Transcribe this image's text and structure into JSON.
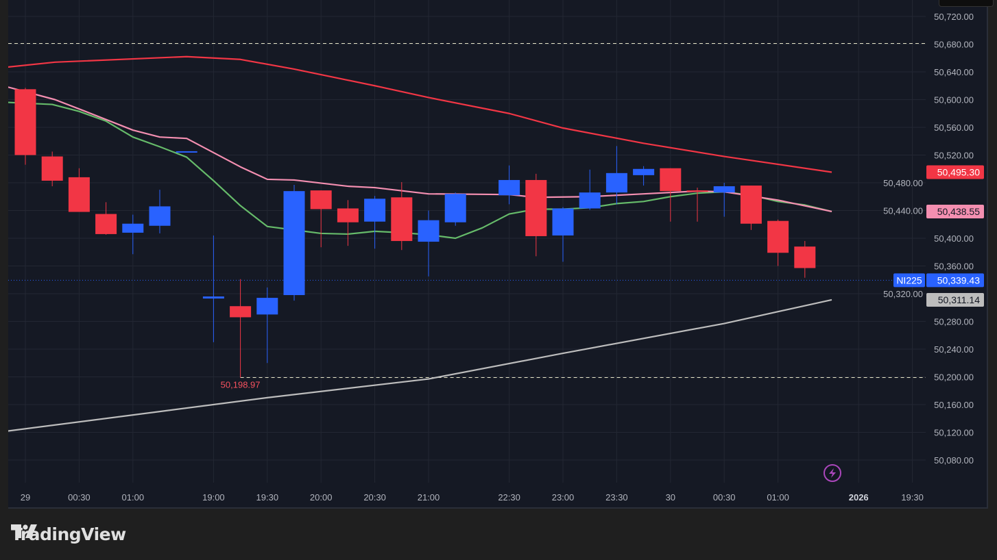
{
  "brand": "TradingView",
  "symbol": "NI225",
  "colors": {
    "up": "#2962ff",
    "down": "#f23645",
    "ma_slow": "#f23645",
    "ma_pink": "#f48fb1",
    "ma_green": "#66bb6a",
    "ma_gray": "#bdbdbd",
    "last": "#2962ff"
  },
  "chart_data": {
    "type": "candlestick",
    "ylim": [
      50050,
      50740
    ],
    "y_ticks": [
      "50,720.00",
      "50,680.00",
      "50,640.00",
      "50,600.00",
      "50,560.00",
      "50,520.00",
      "50,480.00",
      "50,440.00",
      "50,400.00",
      "50,360.00",
      "50,320.00",
      "50,280.00",
      "50,240.00",
      "50,200.00",
      "50,160.00",
      "50,120.00",
      "50,080.00"
    ],
    "y_tick_values": [
      50720,
      50680,
      50640,
      50600,
      50560,
      50520,
      50480,
      50440,
      50400,
      50360,
      50320,
      50280,
      50240,
      50200,
      50160,
      50120,
      50080
    ],
    "x_ticks": [
      {
        "slot": 0,
        "label": "29"
      },
      {
        "slot": 2,
        "label": "00:30"
      },
      {
        "slot": 4,
        "label": "01:00"
      },
      {
        "slot": 7,
        "label": "19:00"
      },
      {
        "slot": 9,
        "label": "19:30"
      },
      {
        "slot": 11,
        "label": "20:00"
      },
      {
        "slot": 13,
        "label": "20:30"
      },
      {
        "slot": 15,
        "label": "21:00"
      },
      {
        "slot": 18,
        "label": "22:30"
      },
      {
        "slot": 20,
        "label": "23:00"
      },
      {
        "slot": 22,
        "label": "23:30"
      },
      {
        "slot": 24,
        "label": "30"
      },
      {
        "slot": 26,
        "label": "00:30"
      },
      {
        "slot": 28,
        "label": "01:00"
      },
      {
        "slot": 31,
        "label": "2026",
        "bold": true
      },
      {
        "slot": 33,
        "label": "19:30"
      }
    ],
    "candles": [
      {
        "slot": 0,
        "o": 50615,
        "h": 50617,
        "l": 50506,
        "c": 50520
      },
      {
        "slot": 1,
        "o": 50518,
        "h": 50525,
        "l": 50475,
        "c": 50483
      },
      {
        "slot": 2,
        "o": 50488,
        "h": 50501,
        "l": 50438,
        "c": 50438
      },
      {
        "slot": 3,
        "o": 50435,
        "h": 50452,
        "l": 50405,
        "c": 50406
      },
      {
        "slot": 4,
        "o": 50408,
        "h": 50434,
        "l": 50377,
        "c": 50421
      },
      {
        "slot": 5,
        "o": 50418,
        "h": 50470,
        "l": 50407,
        "c": 50446
      },
      {
        "slot": 6,
        "o": 50525,
        "h": 50525,
        "l": 50525,
        "c": 50525.5
      },
      {
        "slot": 7,
        "o": 50313,
        "h": 50404,
        "l": 50250,
        "c": 50316
      },
      {
        "slot": 8,
        "o": 50302,
        "h": 50341,
        "l": 50198.97,
        "c": 50286
      },
      {
        "slot": 9,
        "o": 50290,
        "h": 50329,
        "l": 50220,
        "c": 50314
      },
      {
        "slot": 10,
        "o": 50318,
        "h": 50477,
        "l": 50310,
        "c": 50468
      },
      {
        "slot": 11,
        "o": 50469,
        "h": 50469,
        "l": 50387,
        "c": 50442
      },
      {
        "slot": 12,
        "o": 50443,
        "h": 50455,
        "l": 50389,
        "c": 50423
      },
      {
        "slot": 13,
        "o": 50424,
        "h": 50461,
        "l": 50385,
        "c": 50457
      },
      {
        "slot": 14,
        "o": 50459,
        "h": 50481,
        "l": 50383,
        "c": 50396
      },
      {
        "slot": 15,
        "o": 50395,
        "h": 50440,
        "l": 50345,
        "c": 50426
      },
      {
        "slot": 16,
        "o": 50423,
        "h": 50466,
        "l": 50418,
        "c": 50464
      },
      {
        "slot": 18,
        "o": 50462,
        "h": 50505,
        "l": 50449,
        "c": 50484
      },
      {
        "slot": 19,
        "o": 50484,
        "h": 50493,
        "l": 50374,
        "c": 50403
      },
      {
        "slot": 20,
        "o": 50404,
        "h": 50445,
        "l": 50366,
        "c": 50443
      },
      {
        "slot": 21,
        "o": 50443,
        "h": 50499,
        "l": 50441,
        "c": 50466
      },
      {
        "slot": 22,
        "o": 50466,
        "h": 50533,
        "l": 50449,
        "c": 50494
      },
      {
        "slot": 23,
        "o": 50491,
        "h": 50504,
        "l": 50476,
        "c": 50500
      },
      {
        "slot": 24,
        "o": 50501,
        "h": 50501,
        "l": 50424,
        "c": 50468
      },
      {
        "slot": 25,
        "o": 50469,
        "h": 50473,
        "l": 50424,
        "c": 50468
      },
      {
        "slot": 26,
        "o": 50466,
        "h": 50480,
        "l": 50431,
        "c": 50475
      },
      {
        "slot": 27,
        "o": 50476,
        "h": 50476,
        "l": 50412,
        "c": 50421
      },
      {
        "slot": 28,
        "o": 50425,
        "h": 50427,
        "l": 50360,
        "c": 50379
      },
      {
        "slot": 29,
        "o": 50388,
        "h": 50396,
        "l": 50343,
        "c": 50357
      }
    ],
    "series": [
      {
        "name": "ma_slow",
        "color": "#f23645",
        "last_label": "50,495.30",
        "points": [
          [
            -0.64,
            50647
          ],
          [
            1.1,
            50654
          ],
          [
            6,
            50662
          ],
          [
            8,
            50658
          ],
          [
            10,
            50644
          ],
          [
            13,
            50620
          ],
          [
            15,
            50603
          ],
          [
            18,
            50580
          ],
          [
            20,
            50559
          ],
          [
            23,
            50537
          ],
          [
            26,
            50518
          ],
          [
            30,
            50495.3
          ]
        ]
      },
      {
        "name": "ma_green",
        "color": "#66bb6a",
        "points": [
          [
            -0.64,
            50596
          ],
          [
            1,
            50593
          ],
          [
            2,
            50583
          ],
          [
            3,
            50569
          ],
          [
            4,
            50546
          ],
          [
            5,
            50532
          ],
          [
            6,
            50517
          ],
          [
            7,
            50483
          ],
          [
            8,
            50447
          ],
          [
            9,
            50417
          ],
          [
            10,
            50412
          ],
          [
            11,
            50407
          ],
          [
            12,
            50406
          ],
          [
            13,
            50410
          ],
          [
            14,
            50408
          ],
          [
            15,
            50405
          ],
          [
            16,
            50400
          ],
          [
            17,
            50415
          ],
          [
            18,
            50435
          ],
          [
            19,
            50442
          ],
          [
            20,
            50442
          ],
          [
            21,
            50444
          ],
          [
            22,
            50450
          ],
          [
            23,
            50453
          ],
          [
            24,
            50460
          ],
          [
            25,
            50465
          ],
          [
            26,
            50467
          ],
          [
            27,
            50462
          ],
          [
            28,
            50453
          ],
          [
            29,
            50448
          ],
          [
            30,
            50438.55
          ]
        ]
      },
      {
        "name": "ma_pink",
        "color": "#f48fb1",
        "last_label": "50,438.55",
        "points": [
          [
            -0.64,
            50618
          ],
          [
            1.1,
            50600
          ],
          [
            2.1,
            50585
          ],
          [
            4,
            50556
          ],
          [
            5,
            50546
          ],
          [
            6,
            50544
          ],
          [
            8,
            50503
          ],
          [
            9,
            50485
          ],
          [
            10,
            50484
          ],
          [
            12,
            50475
          ],
          [
            13,
            50473
          ],
          [
            15,
            50464
          ],
          [
            18,
            50463
          ],
          [
            19,
            50459
          ],
          [
            21,
            50460
          ],
          [
            23,
            50464
          ],
          [
            25,
            50468
          ],
          [
            26,
            50467
          ],
          [
            28,
            50455
          ],
          [
            30,
            50438.55
          ]
        ]
      },
      {
        "name": "ma_gray",
        "color": "#bdbdbd",
        "last_label": "50,311.14",
        "points": [
          [
            -0.64,
            50122
          ],
          [
            5,
            50150
          ],
          [
            9,
            50170
          ],
          [
            15,
            50197
          ],
          [
            20,
            50234
          ],
          [
            26,
            50277
          ],
          [
            30,
            50311.14
          ]
        ]
      }
    ],
    "last_price": 50339.43,
    "last_price_label": "50,339.43",
    "high_line": 50681,
    "low_line": 50198.97,
    "low_label": "50,198.97"
  }
}
